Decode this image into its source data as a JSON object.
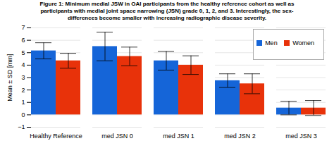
{
  "chart_data": {
    "type": "bar",
    "title": "Figure 1: Minimum medial JSW in OAI participants from the healthy reference cohort as well as\nparticipants with medial joint space narrowing (JSN) grade 0, 1, 2, and 3. Interestingly, the sex-\ndifferences become smaller with increasing radiographic disease severity.",
    "categories": [
      "Healthy Reference",
      "med JSN 0",
      "med JSN 1",
      "med JSN 2",
      "med JSN 3"
    ],
    "series": [
      {
        "name": "Men",
        "color": "#1565d8",
        "values": [
          5.15,
          5.5,
          4.35,
          2.75,
          0.55
        ],
        "errors": [
          0.65,
          1.15,
          0.75,
          0.55,
          0.55
        ]
      },
      {
        "name": "Women",
        "color": "#e8320a",
        "values": [
          4.35,
          4.7,
          4.0,
          2.5,
          0.55
        ],
        "errors": [
          0.6,
          0.75,
          0.75,
          0.8,
          0.6
        ]
      }
    ],
    "ylabel": "Mean ± SD [mm]",
    "ylim": [
      -1.0,
      7.0
    ],
    "yticks": [
      -1.0,
      0.0,
      1.0,
      2.0,
      3.0,
      4.0,
      5.0,
      6.0,
      7.0
    ],
    "grid": true,
    "legend": "upper right"
  }
}
